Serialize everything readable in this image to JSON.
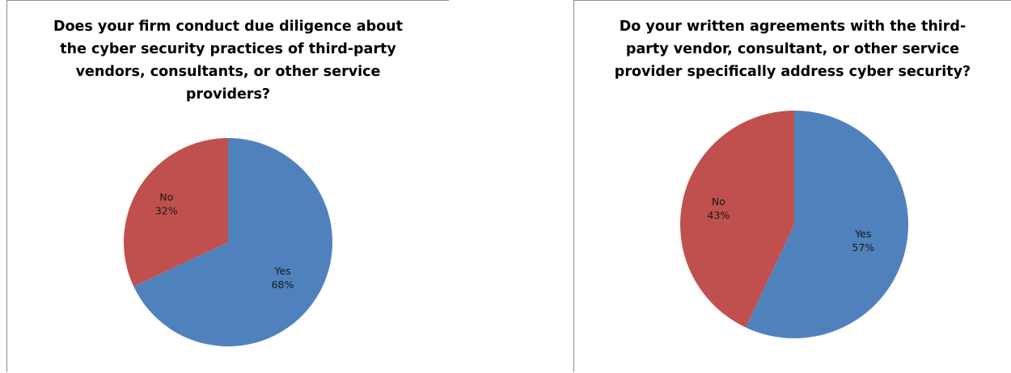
{
  "chart_data": [
    {
      "type": "pie",
      "title": "Does your firm conduct due diligence about the cyber security practices of third-party vendors, consultants, or other service providers?",
      "categories": [
        "Yes",
        "No"
      ],
      "values": [
        68,
        32
      ],
      "value_labels": [
        "68%",
        "32%"
      ],
      "colors": [
        "#4f81bd",
        "#c0504d"
      ],
      "start_angle_deg": 0,
      "direction": "clockwise",
      "legend": "none",
      "data_labels": "inside"
    },
    {
      "type": "pie",
      "title": "Do your written agreements with the third-party vendor, consultant, or other service provider specifically address cyber security?",
      "categories": [
        "Yes",
        "No"
      ],
      "values": [
        57,
        43
      ],
      "value_labels": [
        "57%",
        "43%"
      ],
      "colors": [
        "#4f81bd",
        "#c0504d"
      ],
      "start_angle_deg": 0,
      "direction": "clockwise",
      "legend": "none",
      "data_labels": "inside"
    }
  ]
}
